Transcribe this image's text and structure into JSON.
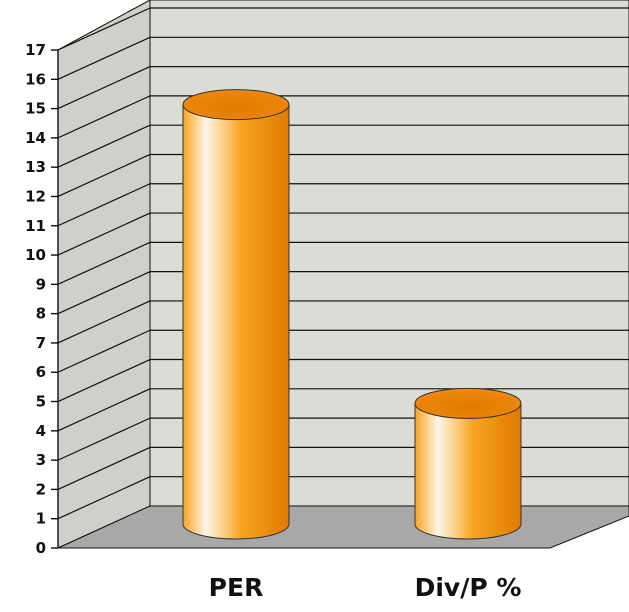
{
  "chart_data": {
    "type": "bar",
    "style": "3d-cylinder",
    "categories": [
      "PER",
      "Div/P %"
    ],
    "values": [
      15,
      4.8
    ],
    "ylim": [
      0,
      17
    ],
    "yticks": [
      0,
      1,
      2,
      3,
      4,
      5,
      6,
      7,
      8,
      9,
      10,
      11,
      12,
      13,
      14,
      15,
      16,
      17
    ],
    "grid": true,
    "legend": "none",
    "colors": {
      "bar_light": "#fff6e8",
      "bar_mid": "#f7a421",
      "bar_dark": "#e07a00",
      "bar_top": "#f08a10",
      "back_wall": "#dcdcd6",
      "side_wall": "#d0d0ca",
      "floor": "#a8a8a8",
      "grid_line": "#111111"
    }
  }
}
